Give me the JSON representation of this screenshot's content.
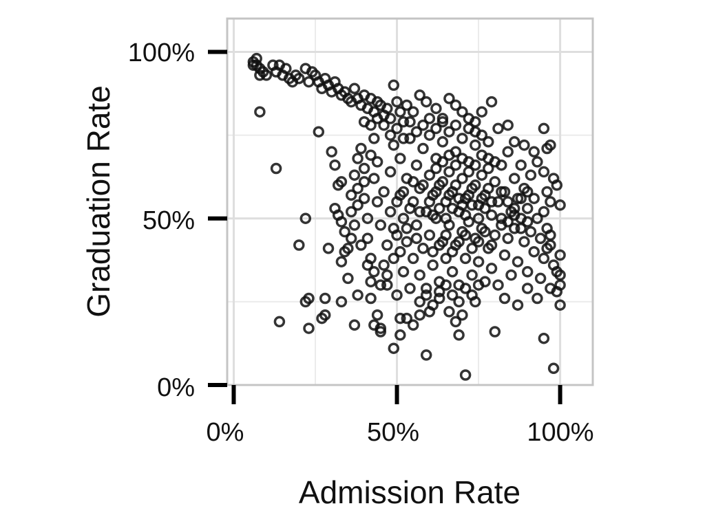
{
  "chart_data": {
    "type": "scatter",
    "xlabel": "Admission Rate",
    "ylabel": "Graduation Rate",
    "xlim": [
      -0.02,
      1.1
    ],
    "ylim": [
      0,
      1.1
    ],
    "x_ticks": [
      0,
      0.5,
      1.0
    ],
    "x_tick_labels": [
      "0%",
      "50%",
      "100%"
    ],
    "y_ticks": [
      0,
      0.5,
      1.0
    ],
    "y_tick_labels": [
      "0%",
      "50%",
      "100%"
    ],
    "grid": true,
    "marker": "open-circle",
    "colors": {
      "marker": "#111111",
      "grid": "#ebebeb",
      "frame": "#c4c4c4",
      "tick": "#000000"
    },
    "points": [
      [
        0.06,
        0.97
      ],
      [
        0.06,
        0.96
      ],
      [
        0.07,
        0.98
      ],
      [
        0.08,
        0.95
      ],
      [
        0.08,
        0.93
      ],
      [
        0.07,
        0.96
      ],
      [
        0.09,
        0.94
      ],
      [
        0.1,
        0.93
      ],
      [
        0.12,
        0.96
      ],
      [
        0.13,
        0.94
      ],
      [
        0.14,
        0.96
      ],
      [
        0.15,
        0.93
      ],
      [
        0.16,
        0.95
      ],
      [
        0.17,
        0.92
      ],
      [
        0.18,
        0.91
      ],
      [
        0.19,
        0.93
      ],
      [
        0.2,
        0.92
      ],
      [
        0.22,
        0.95
      ],
      [
        0.23,
        0.91
      ],
      [
        0.24,
        0.94
      ],
      [
        0.25,
        0.93
      ],
      [
        0.26,
        0.91
      ],
      [
        0.27,
        0.89
      ],
      [
        0.28,
        0.92
      ],
      [
        0.29,
        0.9
      ],
      [
        0.3,
        0.88
      ],
      [
        0.31,
        0.91
      ],
      [
        0.32,
        0.89
      ],
      [
        0.33,
        0.87
      ],
      [
        0.34,
        0.88
      ],
      [
        0.35,
        0.86
      ],
      [
        0.36,
        0.85
      ],
      [
        0.37,
        0.89
      ],
      [
        0.38,
        0.86
      ],
      [
        0.39,
        0.84
      ],
      [
        0.4,
        0.87
      ],
      [
        0.41,
        0.83
      ],
      [
        0.42,
        0.86
      ],
      [
        0.43,
        0.82
      ],
      [
        0.44,
        0.85
      ],
      [
        0.45,
        0.84
      ],
      [
        0.46,
        0.81
      ],
      [
        0.47,
        0.83
      ],
      [
        0.48,
        0.8
      ],
      [
        0.49,
        0.9
      ],
      [
        0.5,
        0.85
      ],
      [
        0.51,
        0.82
      ],
      [
        0.52,
        0.79
      ],
      [
        0.53,
        0.84
      ],
      [
        0.55,
        0.82
      ],
      [
        0.57,
        0.87
      ],
      [
        0.59,
        0.85
      ],
      [
        0.6,
        0.8
      ],
      [
        0.62,
        0.83
      ],
      [
        0.64,
        0.79
      ],
      [
        0.66,
        0.86
      ],
      [
        0.68,
        0.84
      ],
      [
        0.7,
        0.82
      ],
      [
        0.72,
        0.8
      ],
      [
        0.74,
        0.76
      ],
      [
        0.76,
        0.82
      ],
      [
        0.79,
        0.85
      ],
      [
        0.81,
        0.77
      ],
      [
        0.84,
        0.78
      ],
      [
        0.86,
        0.73
      ],
      [
        0.89,
        0.72
      ],
      [
        0.92,
        0.7
      ],
      [
        0.95,
        0.77
      ],
      [
        0.97,
        0.72
      ],
      [
        0.96,
        0.71
      ],
      [
        0.08,
        0.82
      ],
      [
        0.26,
        0.76
      ],
      [
        0.13,
        0.65
      ],
      [
        0.22,
        0.5
      ],
      [
        0.2,
        0.42
      ],
      [
        0.29,
        0.41
      ],
      [
        0.14,
        0.19
      ],
      [
        0.23,
        0.17
      ],
      [
        0.22,
        0.25
      ],
      [
        0.23,
        0.26
      ],
      [
        0.27,
        0.2
      ],
      [
        0.28,
        0.21
      ],
      [
        0.28,
        0.26
      ],
      [
        0.33,
        0.25
      ],
      [
        0.37,
        0.18
      ],
      [
        0.38,
        0.27
      ],
      [
        0.42,
        0.26
      ],
      [
        0.43,
        0.18
      ],
      [
        0.44,
        0.21
      ],
      [
        0.45,
        0.16
      ],
      [
        0.45,
        0.17
      ],
      [
        0.49,
        0.11
      ],
      [
        0.51,
        0.15
      ],
      [
        0.51,
        0.2
      ],
      [
        0.53,
        0.2
      ],
      [
        0.55,
        0.18
      ],
      [
        0.57,
        0.21
      ],
      [
        0.59,
        0.09
      ],
      [
        0.6,
        0.22
      ],
      [
        0.63,
        0.26
      ],
      [
        0.66,
        0.22
      ],
      [
        0.68,
        0.19
      ],
      [
        0.69,
        0.15
      ],
      [
        0.7,
        0.21
      ],
      [
        0.71,
        0.03
      ],
      [
        0.74,
        0.25
      ],
      [
        0.8,
        0.16
      ],
      [
        0.83,
        0.26
      ],
      [
        0.87,
        0.24
      ],
      [
        0.9,
        0.29
      ],
      [
        0.93,
        0.26
      ],
      [
        0.95,
        0.14
      ],
      [
        0.97,
        0.29
      ],
      [
        0.98,
        0.05
      ],
      [
        0.99,
        0.28
      ],
      [
        1.0,
        0.24
      ],
      [
        1.0,
        0.3
      ],
      [
        1.0,
        0.33
      ],
      [
        1.0,
        0.39
      ],
      [
        1.0,
        0.54
      ],
      [
        0.99,
        0.6
      ],
      [
        0.98,
        0.62
      ],
      [
        0.97,
        0.55
      ],
      [
        0.96,
        0.58
      ],
      [
        0.95,
        0.64
      ],
      [
        0.96,
        0.47
      ],
      [
        0.97,
        0.42
      ],
      [
        0.98,
        0.36
      ],
      [
        0.99,
        0.34
      ],
      [
        0.97,
        0.45
      ],
      [
        0.3,
        0.7
      ],
      [
        0.31,
        0.66
      ],
      [
        0.32,
        0.6
      ],
      [
        0.33,
        0.61
      ],
      [
        0.31,
        0.53
      ],
      [
        0.32,
        0.51
      ],
      [
        0.33,
        0.49
      ],
      [
        0.34,
        0.46
      ],
      [
        0.34,
        0.4
      ],
      [
        0.33,
        0.37
      ],
      [
        0.35,
        0.41
      ],
      [
        0.36,
        0.44
      ],
      [
        0.35,
        0.32
      ],
      [
        0.36,
        0.52
      ],
      [
        0.37,
        0.63
      ],
      [
        0.38,
        0.59
      ],
      [
        0.38,
        0.68
      ],
      [
        0.39,
        0.71
      ],
      [
        0.4,
        0.65
      ],
      [
        0.4,
        0.56
      ],
      [
        0.41,
        0.5
      ],
      [
        0.41,
        0.44
      ],
      [
        0.42,
        0.38
      ],
      [
        0.42,
        0.31
      ],
      [
        0.43,
        0.62
      ],
      [
        0.43,
        0.74
      ],
      [
        0.44,
        0.67
      ],
      [
        0.44,
        0.55
      ],
      [
        0.45,
        0.48
      ],
      [
        0.46,
        0.58
      ],
      [
        0.46,
        0.36
      ],
      [
        0.47,
        0.3
      ],
      [
        0.47,
        0.42
      ],
      [
        0.48,
        0.52
      ],
      [
        0.48,
        0.64
      ],
      [
        0.49,
        0.72
      ],
      [
        0.49,
        0.38
      ],
      [
        0.5,
        0.45
      ],
      [
        0.5,
        0.27
      ],
      [
        0.51,
        0.57
      ],
      [
        0.51,
        0.68
      ],
      [
        0.52,
        0.34
      ],
      [
        0.52,
        0.5
      ],
      [
        0.53,
        0.62
      ],
      [
        0.53,
        0.43
      ],
      [
        0.54,
        0.74
      ],
      [
        0.54,
        0.29
      ],
      [
        0.55,
        0.55
      ],
      [
        0.55,
        0.38
      ],
      [
        0.56,
        0.66
      ],
      [
        0.56,
        0.48
      ],
      [
        0.57,
        0.33
      ],
      [
        0.57,
        0.59
      ],
      [
        0.58,
        0.71
      ],
      [
        0.58,
        0.41
      ],
      [
        0.59,
        0.52
      ],
      [
        0.59,
        0.27
      ],
      [
        0.6,
        0.63
      ],
      [
        0.6,
        0.45
      ],
      [
        0.61,
        0.36
      ],
      [
        0.61,
        0.57
      ],
      [
        0.62,
        0.68
      ],
      [
        0.62,
        0.5
      ],
      [
        0.63,
        0.31
      ],
      [
        0.63,
        0.6
      ],
      [
        0.64,
        0.43
      ],
      [
        0.64,
        0.73
      ],
      [
        0.65,
        0.55
      ],
      [
        0.65,
        0.38
      ],
      [
        0.66,
        0.64
      ],
      [
        0.66,
        0.48
      ],
      [
        0.67,
        0.34
      ],
      [
        0.67,
        0.58
      ],
      [
        0.68,
        0.7
      ],
      [
        0.68,
        0.42
      ],
      [
        0.69,
        0.52
      ],
      [
        0.69,
        0.3
      ],
      [
        0.7,
        0.62
      ],
      [
        0.7,
        0.46
      ],
      [
        0.71,
        0.56
      ],
      [
        0.71,
        0.38
      ],
      [
        0.72,
        0.67
      ],
      [
        0.72,
        0.49
      ],
      [
        0.73,
        0.33
      ],
      [
        0.73,
        0.59
      ],
      [
        0.74,
        0.44
      ],
      [
        0.74,
        0.72
      ],
      [
        0.75,
        0.54
      ],
      [
        0.75,
        0.37
      ],
      [
        0.76,
        0.63
      ],
      [
        0.76,
        0.47
      ],
      [
        0.77,
        0.31
      ],
      [
        0.77,
        0.57
      ],
      [
        0.78,
        0.68
      ],
      [
        0.78,
        0.41
      ],
      [
        0.79,
        0.51
      ],
      [
        0.79,
        0.35
      ],
      [
        0.8,
        0.61
      ],
      [
        0.8,
        0.45
      ],
      [
        0.81,
        0.55
      ],
      [
        0.81,
        0.3
      ],
      [
        0.82,
        0.66
      ],
      [
        0.82,
        0.48
      ],
      [
        0.83,
        0.39
      ],
      [
        0.83,
        0.58
      ],
      [
        0.84,
        0.7
      ],
      [
        0.84,
        0.44
      ],
      [
        0.85,
        0.52
      ],
      [
        0.85,
        0.33
      ],
      [
        0.86,
        0.62
      ],
      [
        0.86,
        0.47
      ],
      [
        0.87,
        0.56
      ],
      [
        0.87,
        0.37
      ],
      [
        0.88,
        0.66
      ],
      [
        0.88,
        0.5
      ],
      [
        0.89,
        0.43
      ],
      [
        0.89,
        0.59
      ],
      [
        0.9,
        0.53
      ],
      [
        0.9,
        0.34
      ],
      [
        0.91,
        0.63
      ],
      [
        0.91,
        0.46
      ],
      [
        0.92,
        0.56
      ],
      [
        0.92,
        0.4
      ],
      [
        0.93,
        0.5
      ],
      [
        0.93,
        0.67
      ],
      [
        0.94,
        0.44
      ],
      [
        0.94,
        0.32
      ],
      [
        0.95,
        0.52
      ],
      [
        0.95,
        0.38
      ],
      [
        0.96,
        0.41
      ],
      [
        0.6,
        0.55
      ],
      [
        0.62,
        0.58
      ],
      [
        0.64,
        0.61
      ],
      [
        0.66,
        0.57
      ],
      [
        0.68,
        0.6
      ],
      [
        0.7,
        0.54
      ],
      [
        0.72,
        0.57
      ],
      [
        0.74,
        0.6
      ],
      [
        0.76,
        0.56
      ],
      [
        0.78,
        0.59
      ],
      [
        0.61,
        0.51
      ],
      [
        0.63,
        0.53
      ],
      [
        0.65,
        0.5
      ],
      [
        0.67,
        0.53
      ],
      [
        0.69,
        0.56
      ],
      [
        0.71,
        0.51
      ],
      [
        0.73,
        0.54
      ],
      [
        0.75,
        0.5
      ],
      [
        0.77,
        0.53
      ],
      [
        0.79,
        0.55
      ],
      [
        0.62,
        0.65
      ],
      [
        0.64,
        0.67
      ],
      [
        0.66,
        0.69
      ],
      [
        0.68,
        0.66
      ],
      [
        0.7,
        0.68
      ],
      [
        0.72,
        0.64
      ],
      [
        0.74,
        0.66
      ],
      [
        0.76,
        0.69
      ],
      [
        0.78,
        0.65
      ],
      [
        0.8,
        0.67
      ],
      [
        0.61,
        0.4
      ],
      [
        0.63,
        0.42
      ],
      [
        0.65,
        0.45
      ],
      [
        0.67,
        0.4
      ],
      [
        0.69,
        0.43
      ],
      [
        0.71,
        0.45
      ],
      [
        0.73,
        0.41
      ],
      [
        0.75,
        0.43
      ],
      [
        0.77,
        0.46
      ],
      [
        0.79,
        0.42
      ],
      [
        0.58,
        0.6
      ],
      [
        0.57,
        0.52
      ],
      [
        0.56,
        0.44
      ],
      [
        0.55,
        0.61
      ],
      [
        0.54,
        0.53
      ],
      [
        0.53,
        0.47
      ],
      [
        0.52,
        0.58
      ],
      [
        0.51,
        0.4
      ],
      [
        0.5,
        0.55
      ],
      [
        0.49,
        0.47
      ],
      [
        0.6,
        0.75
      ],
      [
        0.62,
        0.77
      ],
      [
        0.64,
        0.8
      ],
      [
        0.66,
        0.76
      ],
      [
        0.68,
        0.78
      ],
      [
        0.7,
        0.74
      ],
      [
        0.72,
        0.77
      ],
      [
        0.74,
        0.79
      ],
      [
        0.76,
        0.75
      ],
      [
        0.78,
        0.73
      ],
      [
        0.82,
        0.58
      ],
      [
        0.84,
        0.55
      ],
      [
        0.86,
        0.53
      ],
      [
        0.88,
        0.56
      ],
      [
        0.9,
        0.58
      ],
      [
        0.82,
        0.5
      ],
      [
        0.84,
        0.49
      ],
      [
        0.86,
        0.51
      ],
      [
        0.88,
        0.47
      ],
      [
        0.9,
        0.49
      ],
      [
        0.46,
        0.78
      ],
      [
        0.48,
        0.75
      ],
      [
        0.5,
        0.77
      ],
      [
        0.52,
        0.74
      ],
      [
        0.54,
        0.79
      ],
      [
        0.56,
        0.76
      ],
      [
        0.58,
        0.78
      ],
      [
        0.44,
        0.8
      ],
      [
        0.42,
        0.78
      ],
      [
        0.4,
        0.79
      ],
      [
        0.57,
        0.25
      ],
      [
        0.59,
        0.29
      ],
      [
        0.61,
        0.24
      ],
      [
        0.63,
        0.28
      ],
      [
        0.65,
        0.3
      ],
      [
        0.67,
        0.27
      ],
      [
        0.69,
        0.25
      ],
      [
        0.71,
        0.29
      ],
      [
        0.73,
        0.27
      ],
      [
        0.75,
        0.3
      ],
      [
        0.47,
        0.33
      ],
      [
        0.45,
        0.3
      ],
      [
        0.43,
        0.34
      ],
      [
        0.41,
        0.36
      ],
      [
        0.39,
        0.42
      ],
      [
        0.37,
        0.48
      ],
      [
        0.36,
        0.57
      ],
      [
        0.38,
        0.54
      ],
      [
        0.4,
        0.61
      ],
      [
        0.42,
        0.69
      ]
    ]
  }
}
